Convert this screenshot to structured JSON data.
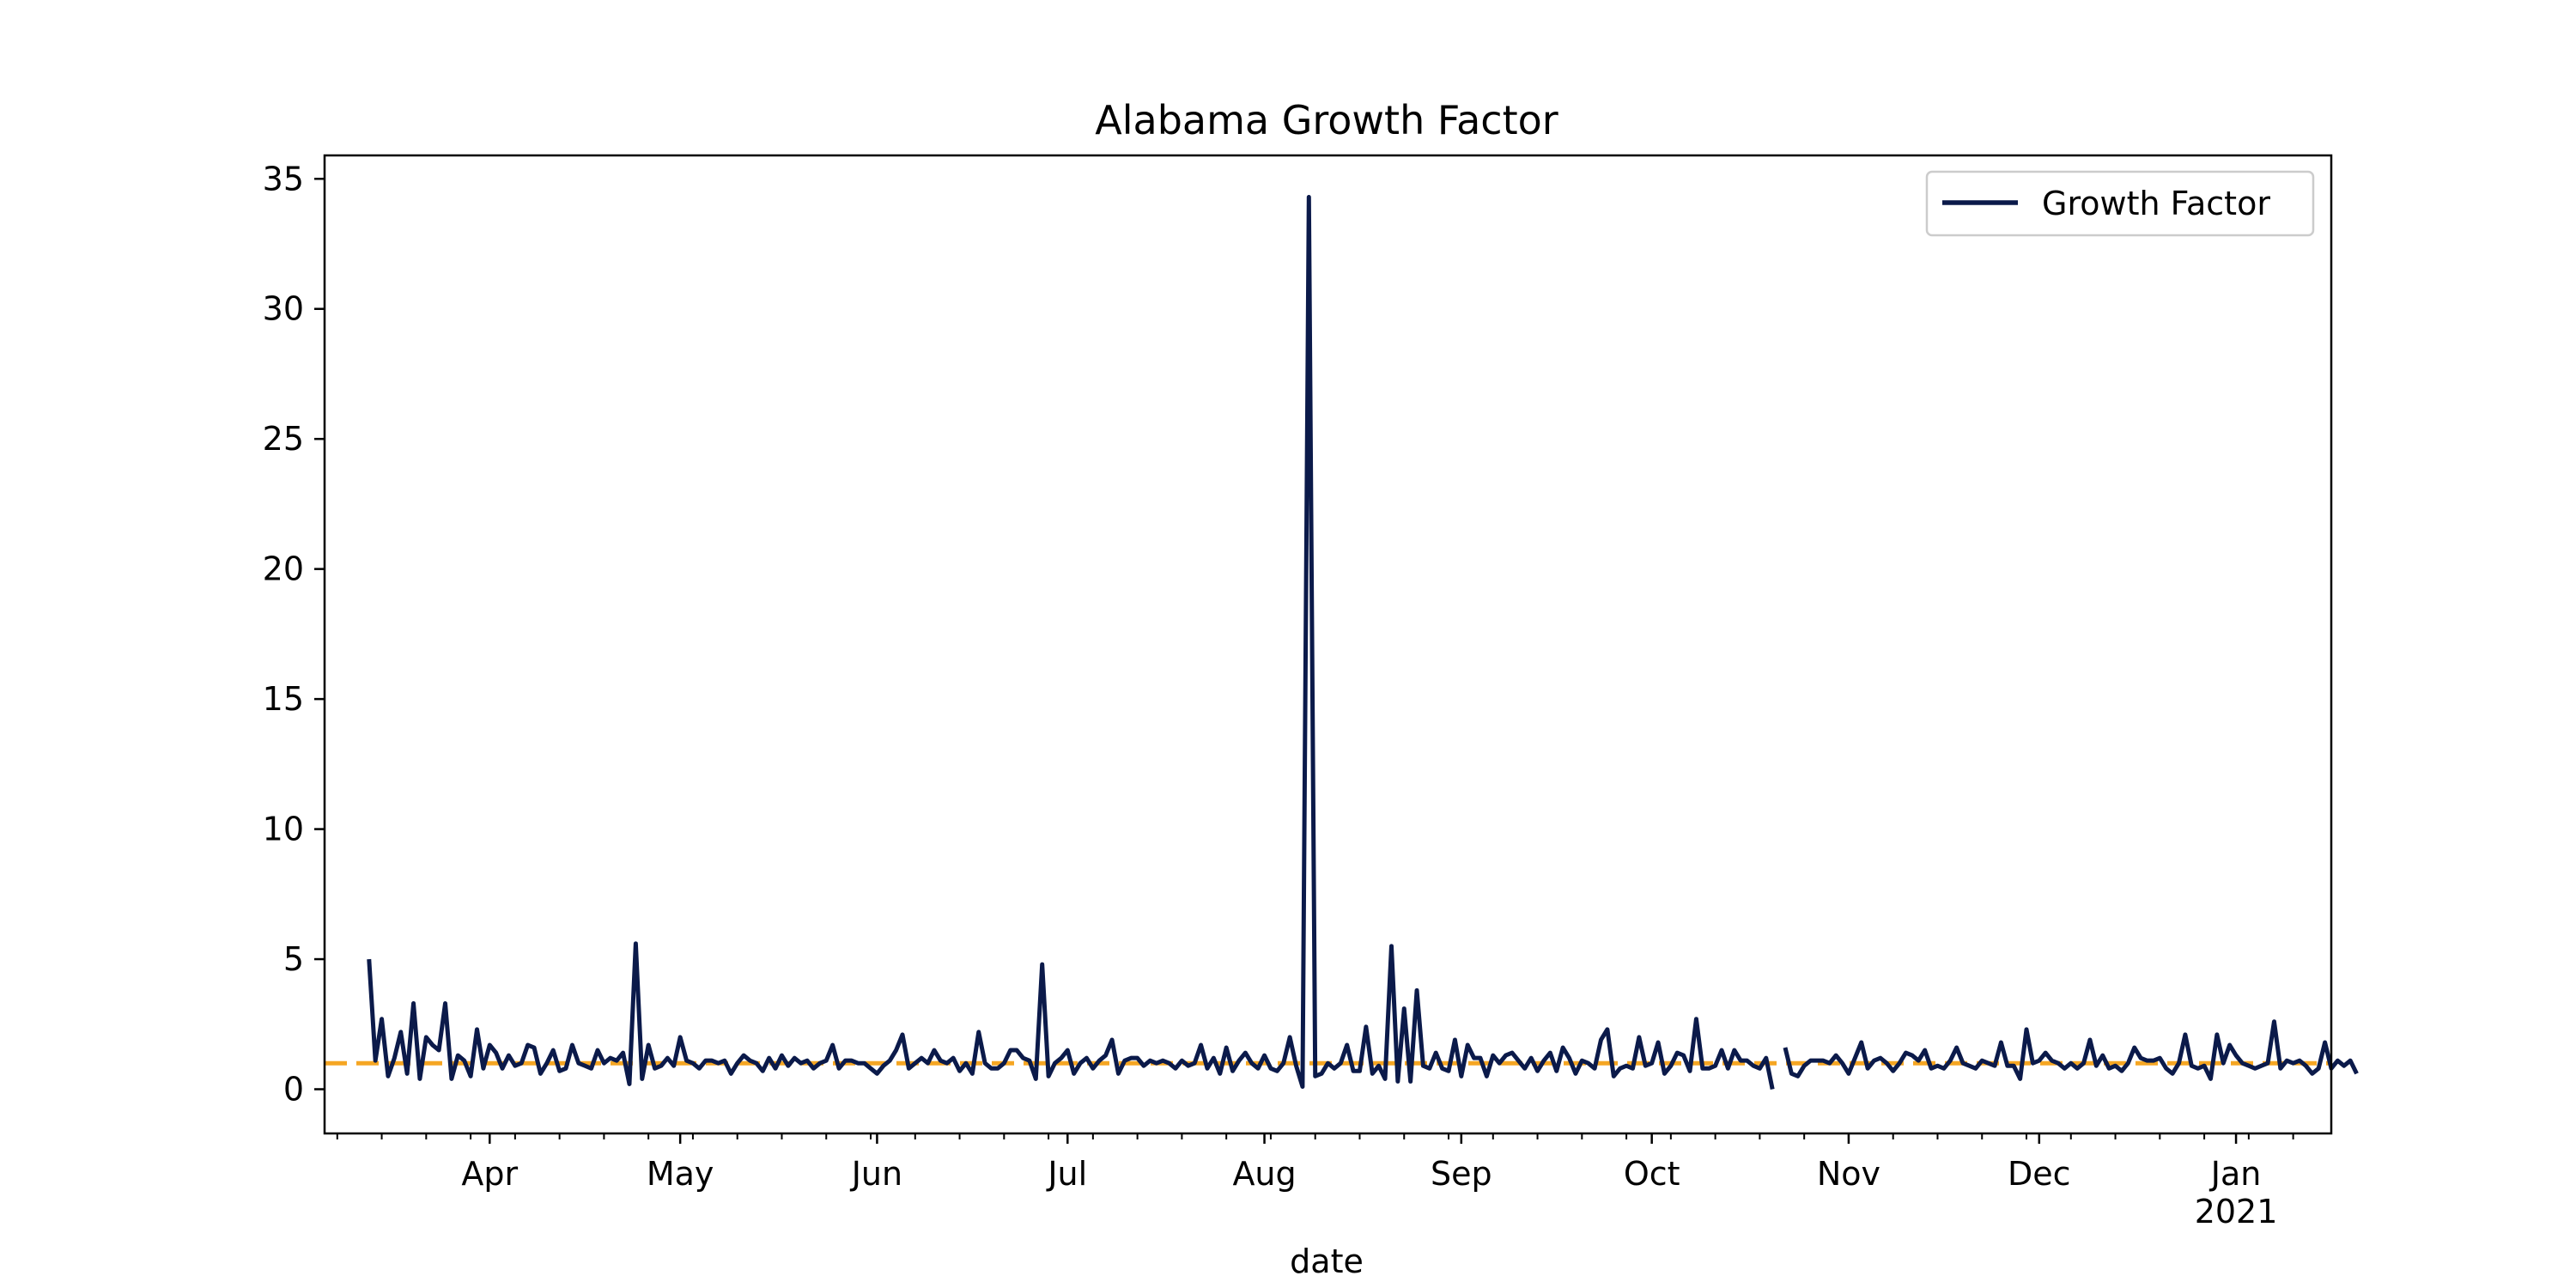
{
  "chart_data": {
    "type": "line",
    "title": "Alabama Growth Factor",
    "xlabel": "date",
    "ylabel": "",
    "x_range": [
      "2020-03-06",
      "2021-01-16"
    ],
    "ylim": [
      -1.7,
      35.9
    ],
    "y_ticks": [
      0,
      5,
      10,
      15,
      20,
      25,
      30,
      35
    ],
    "x_ticks": [
      {
        "date": "2020-04-01",
        "label": "Apr",
        "sublabel": ""
      },
      {
        "date": "2020-05-01",
        "label": "May",
        "sublabel": ""
      },
      {
        "date": "2020-06-01",
        "label": "Jun",
        "sublabel": ""
      },
      {
        "date": "2020-07-01",
        "label": "Jul",
        "sublabel": ""
      },
      {
        "date": "2020-08-01",
        "label": "Aug",
        "sublabel": ""
      },
      {
        "date": "2020-09-01",
        "label": "Sep",
        "sublabel": ""
      },
      {
        "date": "2020-10-01",
        "label": "Oct",
        "sublabel": ""
      },
      {
        "date": "2020-11-01",
        "label": "Nov",
        "sublabel": ""
      },
      {
        "date": "2020-12-01",
        "label": "Dec",
        "sublabel": ""
      },
      {
        "date": "2021-01-01",
        "label": "Jan",
        "sublabel": "2021"
      }
    ],
    "grid": false,
    "legend": {
      "position": "top-right",
      "entries": [
        "Growth Factor"
      ]
    },
    "reference_line": {
      "y": 1.0,
      "style": "dashed",
      "color": "#f5a623"
    },
    "series": [
      {
        "name": "Growth Factor",
        "color": "#0b1a4a",
        "start_date": "2020-03-13",
        "values": [
          5.0,
          1.1,
          2.7,
          0.5,
          1.2,
          2.2,
          0.6,
          3.3,
          0.4,
          2.0,
          1.7,
          1.5,
          3.3,
          0.4,
          1.3,
          1.1,
          0.5,
          2.3,
          0.8,
          1.7,
          1.4,
          0.8,
          1.3,
          0.9,
          1.0,
          1.7,
          1.6,
          0.6,
          1.0,
          1.5,
          0.7,
          0.8,
          1.7,
          1.0,
          0.9,
          0.8,
          1.5,
          1.0,
          1.2,
          1.1,
          1.4,
          0.2,
          5.6,
          0.4,
          1.7,
          0.8,
          0.9,
          1.2,
          0.9,
          2.0,
          1.1,
          1.0,
          0.8,
          1.1,
          1.1,
          1.0,
          1.1,
          0.6,
          1.0,
          1.3,
          1.1,
          1.0,
          0.7,
          1.2,
          0.8,
          1.3,
          0.9,
          1.2,
          1.0,
          1.1,
          0.8,
          1.0,
          1.1,
          1.7,
          0.8,
          1.1,
          1.1,
          1.0,
          1.0,
          0.8,
          0.6,
          0.9,
          1.1,
          1.5,
          2.1,
          0.8,
          1.0,
          1.2,
          1.0,
          1.5,
          1.1,
          1.0,
          1.2,
          0.7,
          1.0,
          0.6,
          2.2,
          1.0,
          0.8,
          0.8,
          1.0,
          1.5,
          1.5,
          1.2,
          1.1,
          0.4,
          4.8,
          0.5,
          1.0,
          1.2,
          1.5,
          0.6,
          1.0,
          1.2,
          0.8,
          1.1,
          1.3,
          1.9,
          0.6,
          1.1,
          1.2,
          1.2,
          0.9,
          1.1,
          1.0,
          1.1,
          1.0,
          0.8,
          1.1,
          0.9,
          1.0,
          1.7,
          0.8,
          1.2,
          0.6,
          1.6,
          0.7,
          1.1,
          1.4,
          1.0,
          0.8,
          1.3,
          0.8,
          0.7,
          1.0,
          2.0,
          0.9,
          0.1,
          34.3,
          0.5,
          0.6,
          1.0,
          0.8,
          1.0,
          1.7,
          0.7,
          0.7,
          2.4,
          0.6,
          0.9,
          0.4,
          5.5,
          0.3,
          3.1,
          0.3,
          3.8,
          0.9,
          0.8,
          1.4,
          0.8,
          0.7,
          1.9,
          0.5,
          1.7,
          1.2,
          1.2,
          0.5,
          1.3,
          1.0,
          1.3,
          1.4,
          1.1,
          0.8,
          1.2,
          0.7,
          1.1,
          1.4,
          0.7,
          1.6,
          1.2,
          0.6,
          1.1,
          1.0,
          0.8,
          1.9,
          2.3,
          0.5,
          0.8,
          0.9,
          0.8,
          2.0,
          0.9,
          1.0,
          1.8,
          0.6,
          0.9,
          1.4,
          1.3,
          0.7,
          2.7,
          0.8,
          0.8,
          0.9,
          1.5,
          0.8,
          1.5,
          1.1,
          1.1,
          0.9,
          0.8,
          1.2,
          0.0,
          null,
          1.6,
          0.6,
          0.5,
          0.9,
          1.1,
          1.1,
          1.1,
          1.0,
          1.3,
          1.0,
          0.6,
          1.2,
          1.8,
          0.8,
          1.1,
          1.2,
          1.0,
          0.7,
          1.0,
          1.4,
          1.3,
          1.1,
          1.5,
          0.8,
          0.9,
          0.8,
          1.1,
          1.6,
          1.0,
          0.9,
          0.8,
          1.1,
          1.0,
          0.9,
          1.8,
          0.9,
          0.9,
          0.4,
          2.3,
          1.0,
          1.1,
          1.4,
          1.1,
          1.0,
          0.8,
          1.0,
          0.8,
          1.0,
          1.9,
          0.9,
          1.3,
          0.8,
          0.9,
          0.7,
          1.0,
          1.6,
          1.2,
          1.1,
          1.1,
          1.2,
          0.8,
          0.6,
          1.0,
          2.1,
          0.9,
          0.8,
          0.9,
          0.4,
          2.1,
          1.0,
          1.7,
          1.3,
          1.0,
          0.9,
          0.8,
          0.9,
          1.0,
          2.6,
          0.8,
          1.1,
          1.0,
          1.1,
          0.9,
          0.6,
          0.8,
          1.8,
          0.8,
          1.1,
          0.9,
          1.1,
          0.6
        ]
      }
    ]
  }
}
